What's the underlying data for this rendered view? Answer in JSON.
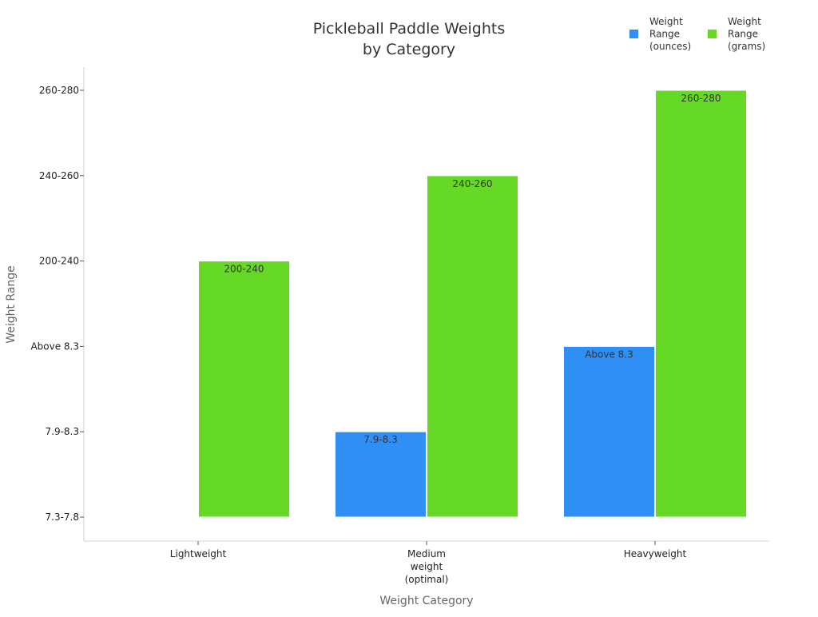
{
  "chart_data": {
    "type": "bar",
    "title_lines": [
      "Pickleball Paddle Weights",
      "by Category"
    ],
    "xlabel": "Weight Category",
    "ylabel": "Weight Range",
    "categories": [
      {
        "lines": [
          "Lightweight"
        ]
      },
      {
        "lines": [
          "Medium",
          "weight",
          "(optimal)"
        ]
      },
      {
        "lines": [
          "Heavyweight"
        ]
      }
    ],
    "y_categories": [
      "7.3-7.8",
      "7.9-8.3",
      "Above 8.3",
      "200-240",
      "240-260",
      "260-280"
    ],
    "series": [
      {
        "name": "Weight Range (ounces)",
        "legend_lines": [
          "Weight",
          "Range",
          "(ounces)"
        ],
        "color": "#2f8ff5",
        "values": [
          null,
          "7.9-8.3",
          "Above 8.3"
        ]
      },
      {
        "name": "Weight Range (grams)",
        "legend_lines": [
          "Weight",
          "Range",
          "(grams)"
        ],
        "color": "#66d926",
        "values": [
          "200-240",
          "240-260",
          "260-280"
        ]
      }
    ],
    "legend_position": "top-right",
    "grid": false
  }
}
